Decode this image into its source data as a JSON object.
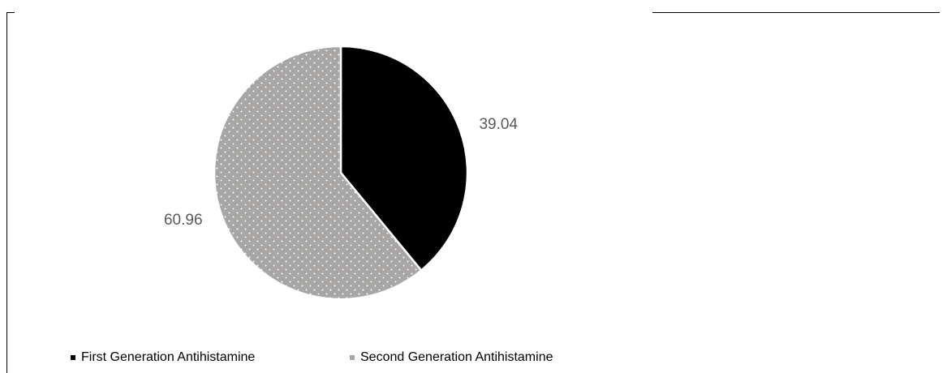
{
  "chart_data": {
    "type": "pie",
    "title": "",
    "categories": [
      "First Generation Antihistamine",
      "Second Generation Antihistamine"
    ],
    "values": [
      39.04,
      60.96
    ],
    "data_labels": [
      "39.04",
      "60.96"
    ],
    "colors": [
      "#000000",
      "#a8a5a5"
    ],
    "patterns": [
      "solid",
      "white-dotted"
    ],
    "start_angle_deg": 0,
    "direction": "clockwise",
    "legend_position": "bottom-left"
  },
  "colors": {
    "slice_border": "#ffffff",
    "label_text": "#595959",
    "dot": "#ffffff"
  }
}
